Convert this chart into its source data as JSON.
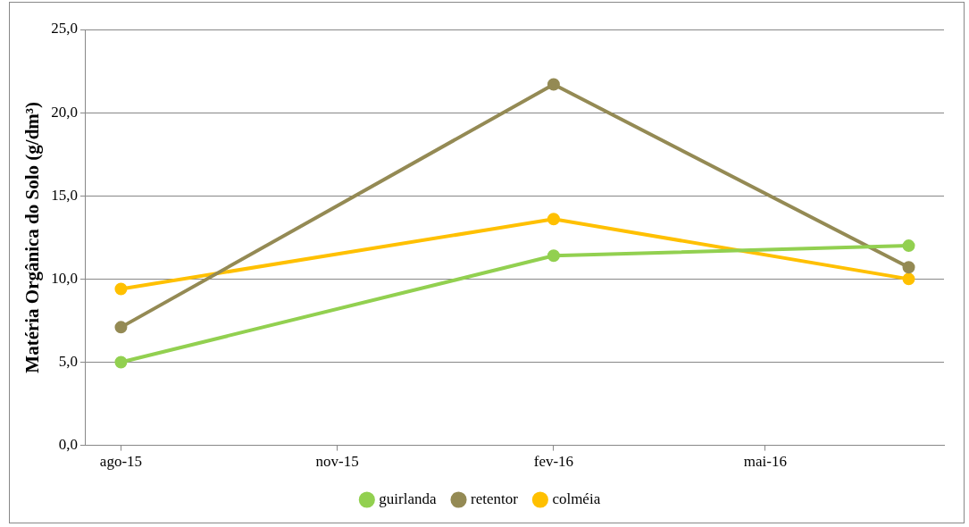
{
  "chart_data": {
    "type": "line",
    "ylabel": "Matéria Orgânica do Solo (g/dm³)",
    "x": [
      "2015-08",
      "2016-02",
      "2016-07"
    ],
    "series": [
      {
        "name": "guirlanda",
        "color": "#92d050",
        "values": [
          5.0,
          11.4,
          12.0
        ]
      },
      {
        "name": "retentor",
        "color": "#948a54",
        "values": [
          7.1,
          21.7,
          10.7
        ]
      },
      {
        "name": "colméia",
        "color": "#ffc000",
        "values": [
          9.4,
          13.6,
          10.0
        ]
      }
    ],
    "xlim": [
      "2015-07-17",
      "2016-07-16"
    ],
    "xticks": [
      {
        "value": "2015-08",
        "label": "ago-15"
      },
      {
        "value": "2015-11",
        "label": "nov-15"
      },
      {
        "value": "2016-02",
        "label": "fev-16"
      },
      {
        "value": "2016-05",
        "label": "mai-16"
      }
    ],
    "ylim": [
      0,
      25
    ],
    "yticks": [
      {
        "value": 0,
        "label": "0,0"
      },
      {
        "value": 5,
        "label": "5,0"
      },
      {
        "value": 10,
        "label": "10,0"
      },
      {
        "value": 15,
        "label": "15,0"
      },
      {
        "value": 20,
        "label": "20,0"
      },
      {
        "value": 25,
        "label": "25,0"
      }
    ],
    "grid": "y",
    "legend": "bottom",
    "marker": "circle",
    "line_style": "solid"
  }
}
